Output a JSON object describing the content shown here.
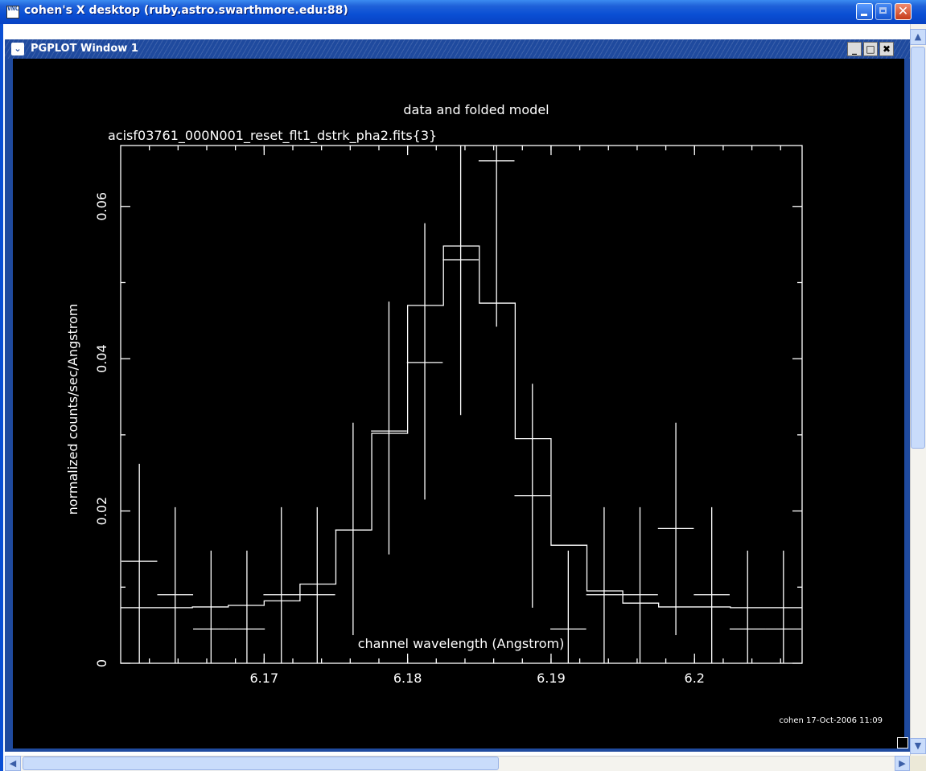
{
  "window": {
    "title": "cohen's X desktop (ruby.astro.swarthmore.edu:88)",
    "close_glyph": "✕"
  },
  "pgplot": {
    "title": "PGPLOT Window 1",
    "menu_glyph": "⌄",
    "min_glyph": "_",
    "max_glyph": "□",
    "close_glyph": "✖"
  },
  "scroll": {
    "up": "▲",
    "down": "▼",
    "left": "◀",
    "right": "▶"
  },
  "chart_data": {
    "type": "line",
    "title": "data and folded model",
    "subtitle": "acisf03761_000N001_reset_flt1_dstrk_pha2.fits{3}",
    "xlabel": "channel wavelength (Angstrom)",
    "ylabel": "normalized counts/sec/Angstrom",
    "xlim": [
      6.16,
      6.2075
    ],
    "ylim": [
      0,
      0.068
    ],
    "x_ticks": [
      6.17,
      6.18,
      6.19,
      6.2
    ],
    "x_tick_labels": [
      "6.17",
      "6.18",
      "6.19",
      "6.2"
    ],
    "y_ticks": [
      0,
      0.02,
      0.04,
      0.06
    ],
    "y_tick_labels": [
      "0",
      "0.02",
      "0.04",
      "0.06"
    ],
    "footer": "cohen 17-Oct-2006 11:09",
    "series": [
      {
        "kind": "data-with-errorbars",
        "points": [
          {
            "x": 6.1613,
            "y": 0.0134,
            "xerr": 0.00125,
            "ylo": 0.0,
            "yhi": 0.0262
          },
          {
            "x": 6.1638,
            "y": 0.009,
            "xerr": 0.00125,
            "ylo": 0.0,
            "yhi": 0.0205
          },
          {
            "x": 6.1663,
            "y": 0.0045,
            "xerr": 0.00125,
            "ylo": 0.0,
            "yhi": 0.0148
          },
          {
            "x": 6.1688,
            "y": 0.0045,
            "xerr": 0.00125,
            "ylo": 0.0,
            "yhi": 0.0148
          },
          {
            "x": 6.1712,
            "y": 0.009,
            "xerr": 0.00125,
            "ylo": 0.0,
            "yhi": 0.0205
          },
          {
            "x": 6.1737,
            "y": 0.009,
            "xerr": 0.00125,
            "ylo": 0.0,
            "yhi": 0.0205
          },
          {
            "x": 6.1762,
            "y": 0.0175,
            "xerr": 0.00125,
            "ylo": 0.0037,
            "yhi": 0.0316
          },
          {
            "x": 6.1787,
            "y": 0.0305,
            "xerr": 0.00125,
            "ylo": 0.0143,
            "yhi": 0.0475
          },
          {
            "x": 6.1812,
            "y": 0.0395,
            "xerr": 0.00125,
            "ylo": 0.0215,
            "yhi": 0.0578
          },
          {
            "x": 6.1837,
            "y": 0.053,
            "xerr": 0.00125,
            "ylo": 0.0326,
            "yhi": 0.068
          },
          {
            "x": 6.1862,
            "y": 0.066,
            "xerr": 0.00125,
            "ylo": 0.0442,
            "yhi": 0.068
          },
          {
            "x": 6.1887,
            "y": 0.022,
            "xerr": 0.00125,
            "ylo": 0.0073,
            "yhi": 0.0367
          },
          {
            "x": 6.1912,
            "y": 0.0045,
            "xerr": 0.00125,
            "ylo": 0.0,
            "yhi": 0.0148
          },
          {
            "x": 6.1937,
            "y": 0.009,
            "xerr": 0.00125,
            "ylo": 0.0,
            "yhi": 0.0205
          },
          {
            "x": 6.1962,
            "y": 0.009,
            "xerr": 0.00125,
            "ylo": 0.0,
            "yhi": 0.0205
          },
          {
            "x": 6.1987,
            "y": 0.0177,
            "xerr": 0.00125,
            "ylo": 0.0037,
            "yhi": 0.0316
          },
          {
            "x": 6.2012,
            "y": 0.009,
            "xerr": 0.00125,
            "ylo": 0.0,
            "yhi": 0.0205
          },
          {
            "x": 6.2037,
            "y": 0.0045,
            "xerr": 0.00125,
            "ylo": 0.0,
            "yhi": 0.0148
          },
          {
            "x": 6.2062,
            "y": 0.0045,
            "xerr": 0.00125,
            "ylo": 0.0,
            "yhi": 0.0148
          }
        ]
      },
      {
        "kind": "model-histogram",
        "edges": [
          6.16,
          6.165,
          6.1675,
          6.17,
          6.1725,
          6.175,
          6.1775,
          6.18,
          6.1825,
          6.185,
          6.1875,
          6.19,
          6.1925,
          6.195,
          6.1975,
          6.2,
          6.2025,
          6.2075
        ],
        "values": [
          0.0073,
          0.0074,
          0.0076,
          0.0082,
          0.0104,
          0.0175,
          0.0302,
          0.047,
          0.0548,
          0.0473,
          0.0295,
          0.0155,
          0.0095,
          0.0079,
          0.0074,
          0.0074,
          0.0073
        ]
      }
    ]
  }
}
